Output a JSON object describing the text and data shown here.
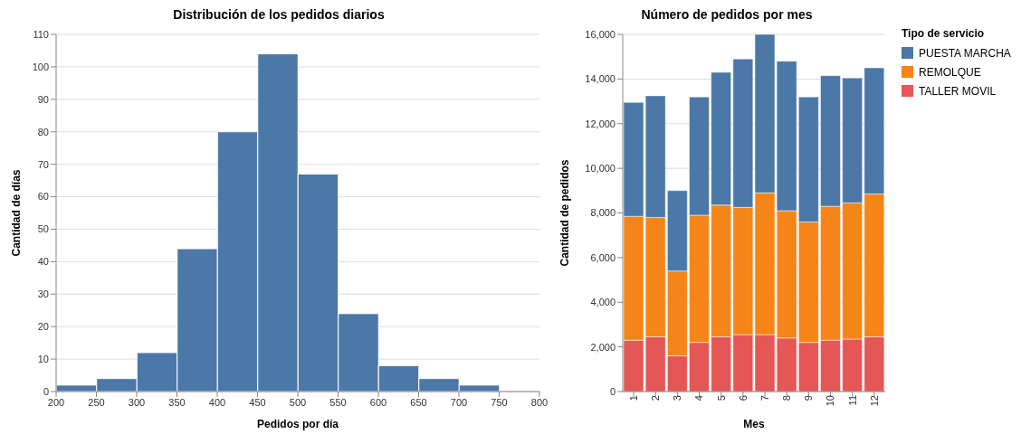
{
  "chart_data": [
    {
      "type": "histogram",
      "title": "Distribución de los pedidos diarios",
      "xlabel": "Pedidos por día",
      "ylabel": "Cantidad de días",
      "bins": [
        200,
        250,
        300,
        350,
        400,
        450,
        500,
        550,
        600,
        650,
        700,
        750
      ],
      "values": [
        2,
        4,
        12,
        44,
        80,
        104,
        67,
        24,
        8,
        4,
        2
      ],
      "color": "#4c78a8",
      "xlim": [
        200,
        800
      ],
      "xticks": [
        200,
        250,
        300,
        350,
        400,
        450,
        500,
        550,
        600,
        650,
        700,
        750,
        800
      ],
      "ylim": [
        0,
        110
      ],
      "yticks": [
        0,
        10,
        20,
        30,
        40,
        50,
        60,
        70,
        80,
        90,
        100,
        110
      ],
      "grid": "y"
    },
    {
      "type": "bar",
      "stacked": true,
      "title": "Número de pedidos por mes",
      "xlabel": "Mes",
      "ylabel": "Cantidad de pedidos",
      "legend_title": "Tipo de servicio",
      "legend": "right",
      "grid": "y",
      "categories": [
        "1",
        "2",
        "3",
        "4",
        "5",
        "6",
        "7",
        "8",
        "9",
        "10",
        "11",
        "12"
      ],
      "ylim": [
        0,
        16000
      ],
      "yticks": [
        0,
        {
          "value": 2000,
          "label": "2,000"
        },
        {
          "value": 4000,
          "label": "4,000"
        },
        {
          "value": 6000,
          "label": "6,000"
        },
        {
          "value": 8000,
          "label": "8,000"
        },
        {
          "value": 10000,
          "label": "10,000"
        },
        {
          "value": 12000,
          "label": "12,000"
        },
        {
          "value": 14000,
          "label": "14,000"
        },
        {
          "value": 16000,
          "label": "16,000"
        }
      ],
      "series": [
        {
          "name": "TALLER MOVIL",
          "color": "#e45756",
          "values": [
            2300,
            2450,
            1600,
            2200,
            2450,
            2550,
            2550,
            2400,
            2200,
            2300,
            2350,
            2450
          ]
        },
        {
          "name": "REMOLQUE",
          "color": "#f58518",
          "values": [
            5550,
            5350,
            3800,
            5700,
            5900,
            5700,
            6350,
            5700,
            5400,
            6000,
            6100,
            6400
          ]
        },
        {
          "name": "PUESTA MARCHA",
          "color": "#4c78a8",
          "values": [
            5100,
            5450,
            3600,
            5300,
            5950,
            6650,
            7100,
            6700,
            5600,
            5850,
            5600,
            5650
          ]
        }
      ]
    }
  ]
}
